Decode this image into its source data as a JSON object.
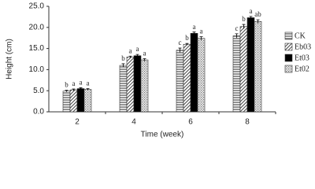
{
  "chart_data": {
    "type": "bar",
    "x_label": "Time (week)",
    "y_label": "Height (cm)",
    "categories": [
      "2",
      "4",
      "6",
      "8"
    ],
    "series": [
      {
        "name": "CK",
        "color": "#888888",
        "pattern": "horizontal",
        "values": [
          4.9,
          11.0,
          14.6,
          18.0
        ],
        "errors": [
          0.2,
          0.4,
          0.5,
          0.5
        ],
        "letters": [
          "b",
          "b",
          "c",
          "c"
        ]
      },
      {
        "name": "Eb03",
        "color": "#555555",
        "pattern": "diagonal",
        "values": [
          5.2,
          13.0,
          16.0,
          20.2
        ],
        "errors": [
          0.2,
          0.2,
          0.2,
          0.5
        ],
        "letters": [
          "a",
          "a",
          "b",
          "b"
        ]
      },
      {
        "name": "Et03",
        "color": "#000000",
        "pattern": "solid",
        "values": [
          5.5,
          13.3,
          18.6,
          22.3
        ],
        "errors": [
          0.2,
          0.3,
          0.3,
          0.3
        ],
        "letters": [
          "a",
          "a",
          "a",
          "a"
        ]
      },
      {
        "name": "Et02",
        "color": "#999999",
        "pattern": "dots",
        "values": [
          5.3,
          12.3,
          17.4,
          21.4
        ],
        "errors": [
          0.2,
          0.3,
          0.4,
          0.4
        ],
        "letters": [
          "a",
          "a",
          "a",
          "ab"
        ]
      }
    ],
    "ylim": [
      0,
      25
    ],
    "yticks": [
      {
        "value": 0,
        "label": "0.0"
      },
      {
        "value": 5,
        "label": "5.0"
      },
      {
        "value": 10,
        "label": "10.0"
      },
      {
        "value": 15,
        "label": "15.0"
      },
      {
        "value": 20,
        "label": "20.0"
      },
      {
        "value": 25,
        "label": "25.0"
      }
    ]
  }
}
